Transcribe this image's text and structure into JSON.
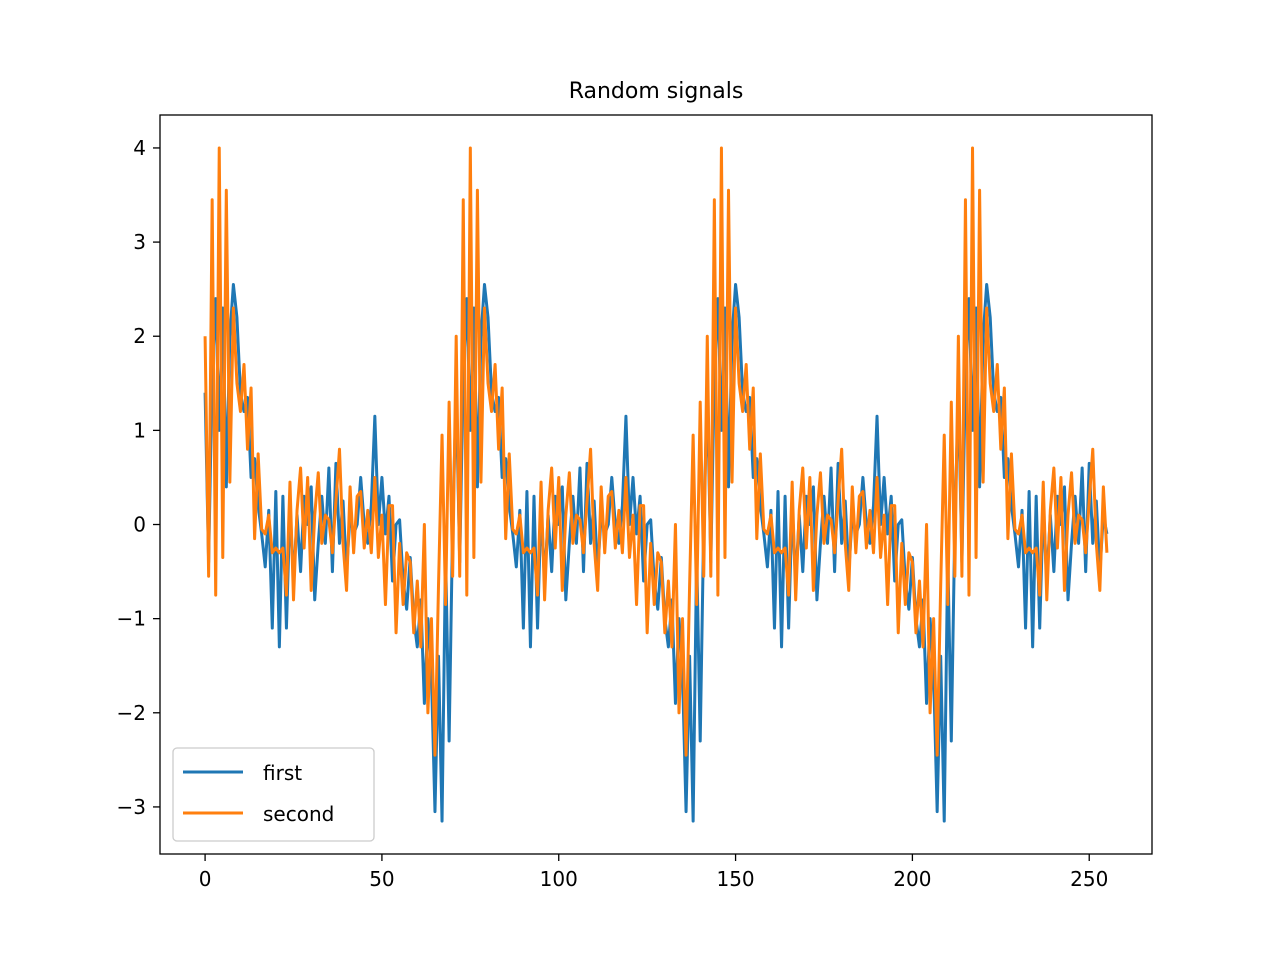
{
  "chart_data": {
    "type": "line",
    "title": "Random signals",
    "xlabel": "",
    "ylabel": "",
    "xlim": [
      -12.75,
      267.75
    ],
    "ylim": [
      -3.5,
      4.35
    ],
    "xticks": [
      0,
      50,
      100,
      150,
      200,
      250
    ],
    "yticks": [
      -3,
      -2,
      -1,
      0,
      1,
      2,
      3,
      4
    ],
    "xtick_labels": [
      "0",
      "50",
      "100",
      "150",
      "200",
      "250"
    ],
    "ytick_labels": [
      "−3",
      "−2",
      "−1",
      "0",
      "1",
      "2",
      "3",
      "4"
    ],
    "grid": false,
    "legend_position": "lower-left",
    "period": 71,
    "x": "0..255 (integer sample index)",
    "series": [
      {
        "name": "first",
        "color": "#1f77b4",
        "values": [
          1.4,
          -0.4,
          1.6,
          2.4,
          1.0,
          2.3,
          0.4,
          2.0,
          2.55,
          2.2,
          1.4,
          1.2,
          1.35,
          0.5,
          0.7,
          0.2,
          -0.1,
          -0.45,
          0.15,
          -1.1,
          0.35,
          -1.3,
          0.3,
          -1.1,
          0.2,
          -0.6,
          0.1,
          -0.5,
          0.3,
          0.0,
          0.4,
          -0.8,
          -0.2,
          0.3,
          -0.2,
          0.6,
          -0.5,
          0.65,
          -0.2,
          0.25,
          -0.5,
          0.1,
          -0.1,
          0.0,
          0.5,
          0.0,
          -0.2,
          0.2,
          1.15,
          0.0,
          0.5,
          -0.1,
          0.3,
          -0.6,
          0.0,
          0.05,
          -0.6,
          -0.9,
          -0.35,
          -1.0,
          -1.3,
          -0.8,
          -1.9,
          -1.0,
          -1.6,
          -3.05,
          -1.4,
          -3.15,
          -0.3,
          -2.3,
          0.0,
          0.6
        ]
      },
      {
        "name": "second",
        "color": "#ff7f0e",
        "values": [
          2.0,
          -0.55,
          3.45,
          -0.75,
          4.0,
          -0.35,
          3.55,
          0.45,
          2.3,
          1.5,
          1.2,
          1.7,
          0.8,
          1.45,
          -0.15,
          0.75,
          -0.05,
          -0.1,
          0.1,
          -0.3,
          -0.25,
          -0.3,
          -0.25,
          -0.75,
          0.45,
          -0.8,
          0.15,
          0.6,
          -0.25,
          0.5,
          -0.7,
          0.1,
          0.55,
          -0.2,
          0.1,
          0.05,
          -0.3,
          0.25,
          0.8,
          -0.2,
          -0.7,
          0.4,
          -0.3,
          0.3,
          0.35,
          -0.25,
          0.15,
          -0.3,
          0.5,
          -0.35,
          0.1,
          -0.85,
          0.2,
          0.2,
          -1.15,
          -0.2,
          -0.85,
          -0.3,
          -0.4,
          -1.15,
          -0.6,
          -1.3,
          0.0,
          -2.0,
          -1.0,
          -2.45,
          -0.65,
          0.95,
          -0.85,
          1.3,
          -0.55,
          2.0
        ]
      }
    ]
  }
}
